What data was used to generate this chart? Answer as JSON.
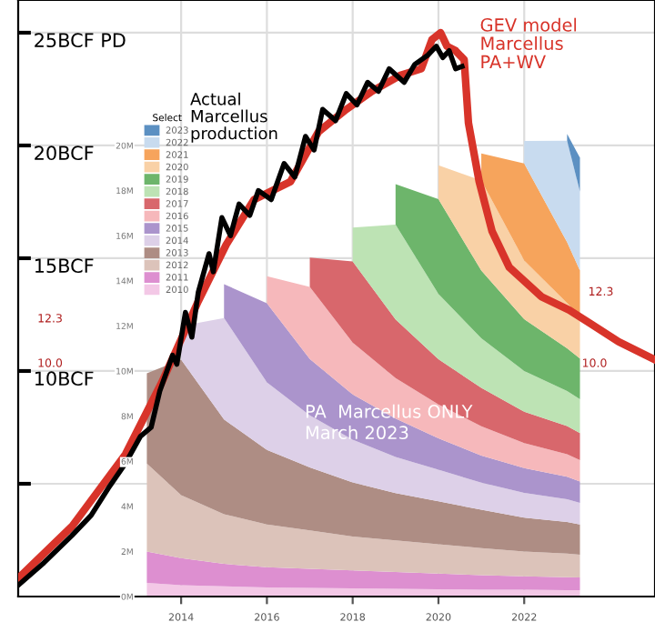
{
  "chart_data": {
    "type": "area",
    "stacked": true,
    "x": [
      2013.2,
      2014,
      2015,
      2016,
      2017,
      2018,
      2019,
      2020,
      2021,
      2022,
      2023,
      2023.3
    ],
    "xlim": [
      2010.2,
      2025.05
    ],
    "xticks": [
      2014,
      2016,
      2018,
      2020,
      2022
    ],
    "ylim": [
      0,
      26.45
    ],
    "yticks": [
      {
        "value": 5,
        "label": null
      },
      {
        "value": 10,
        "label": "10BCF"
      },
      {
        "value": 15,
        "label": "15BCF"
      },
      {
        "value": 20,
        "label": "20BCF"
      },
      {
        "value": 25,
        "label": "25BCF PD"
      }
    ],
    "y2lim": [
      0,
      26.45
    ],
    "y2ticks": [
      {
        "value": 0,
        "label": "0M"
      },
      {
        "value": 2,
        "label": "2M"
      },
      {
        "value": 4,
        "label": "4M"
      },
      {
        "value": 6,
        "label": "6M"
      },
      {
        "value": 8,
        "label": "8M"
      },
      {
        "value": 10,
        "label": "10M"
      },
      {
        "value": 12,
        "label": "12M"
      },
      {
        "value": 14,
        "label": "14M"
      },
      {
        "value": 16,
        "label": "16M"
      },
      {
        "value": 18,
        "label": "18M"
      },
      {
        "value": 20,
        "label": "20M"
      }
    ],
    "grid": true,
    "legend": "top left",
    "legend_title": "Select",
    "series": [
      {
        "name": "2010",
        "color": "#f3c8e6",
        "values": [
          0.6,
          0.5,
          0.45,
          0.4,
          0.38,
          0.36,
          0.34,
          0.32,
          0.3,
          0.3,
          0.28,
          0.28
        ]
      },
      {
        "name": "2011",
        "color": "#dd8fd0",
        "values": [
          1.4,
          1.2,
          1.0,
          0.9,
          0.85,
          0.8,
          0.75,
          0.7,
          0.65,
          0.6,
          0.58,
          0.57
        ]
      },
      {
        "name": "2012",
        "color": "#dcc3ba",
        "values": [
          3.9,
          2.8,
          2.2,
          1.9,
          1.7,
          1.5,
          1.4,
          1.3,
          1.2,
          1.1,
          1.05,
          1.0
        ]
      },
      {
        "name": "2013",
        "color": "#ae8d84",
        "values": [
          4.0,
          6.0,
          4.2,
          3.3,
          2.8,
          2.4,
          2.1,
          1.9,
          1.7,
          1.5,
          1.4,
          1.35
        ]
      },
      {
        "name": "2014",
        "color": "#ddd0e8",
        "values": [
          null,
          1.5,
          4.5,
          3.0,
          2.3,
          1.9,
          1.6,
          1.4,
          1.2,
          1.1,
          1.0,
          0.95
        ]
      },
      {
        "name": "2015",
        "color": "#ab94cc",
        "values": [
          null,
          null,
          1.5,
          3.5,
          2.5,
          2.0,
          1.7,
          1.4,
          1.2,
          1.1,
          1.0,
          0.95
        ]
      },
      {
        "name": "2016",
        "color": "#f6b8bb",
        "values": [
          null,
          null,
          null,
          1.2,
          3.2,
          2.3,
          1.8,
          1.5,
          1.3,
          1.1,
          1.0,
          0.95
        ]
      },
      {
        "name": "2017",
        "color": "#d8676c",
        "values": [
          null,
          null,
          null,
          null,
          1.3,
          3.6,
          2.6,
          2.0,
          1.7,
          1.4,
          1.25,
          1.2
        ]
      },
      {
        "name": "2018",
        "color": "#bde3b4",
        "values": [
          null,
          null,
          null,
          null,
          null,
          1.5,
          4.2,
          2.9,
          2.2,
          1.8,
          1.55,
          1.5
        ]
      },
      {
        "name": "2019",
        "color": "#6db56b",
        "values": [
          null,
          null,
          null,
          null,
          null,
          null,
          1.8,
          4.2,
          3.0,
          2.3,
          1.9,
          1.8
        ]
      },
      {
        "name": "2020",
        "color": "#f9d1a6",
        "values": [
          null,
          null,
          null,
          null,
          null,
          null,
          null,
          1.5,
          4.0,
          2.6,
          2.0,
          1.9
        ]
      },
      {
        "name": "2021",
        "color": "#f6a45c",
        "values": [
          null,
          null,
          null,
          null,
          null,
          null,
          null,
          null,
          1.2,
          4.3,
          2.7,
          2.0
        ]
      },
      {
        "name": "2022",
        "color": "#c8dbef",
        "values": [
          null,
          null,
          null,
          null,
          null,
          null,
          null,
          null,
          null,
          1.0,
          4.5,
          3.5
        ]
      },
      {
        "name": "2023",
        "color": "#5c90c2",
        "values": [
          null,
          null,
          null,
          null,
          null,
          null,
          null,
          null,
          null,
          null,
          0.3,
          1.5
        ]
      },
      {
        "type": "line",
        "name": "GEV model\nMarcellus\nPA+WV",
        "color": "#d8342a",
        "x": [
          2010.2,
          2011.45,
          2012.7,
          2013.55,
          2014.4,
          2015.05,
          2015.7,
          2016.55,
          2017.2,
          2017.85,
          2018.45,
          2019.1,
          2019.6,
          2019.85,
          2020.05,
          2020.2,
          2020.4,
          2020.6,
          2020.7,
          2020.95,
          2021.25,
          2021.65,
          2022.4,
          2023.05,
          2023.55,
          2024.2,
          2025.05
        ],
        "values": [
          0.8,
          3.1,
          6.3,
          9.5,
          13.1,
          15.6,
          17.6,
          18.4,
          20.6,
          21.6,
          22.4,
          23.1,
          23.4,
          24.7,
          25.0,
          24.4,
          24.2,
          23.8,
          21.0,
          18.4,
          16.2,
          14.6,
          13.3,
          12.7,
          12.1,
          11.3,
          10.5
        ]
      },
      {
        "type": "line",
        "name": "Actual\nMarcellus\nproduction",
        "color": "#000000",
        "x": [
          2010.2,
          2010.8,
          2011.45,
          2011.9,
          2012.3,
          2012.7,
          2013.05,
          2013.3,
          2013.5,
          2013.8,
          2013.9,
          2014.1,
          2014.25,
          2014.4,
          2014.65,
          2014.75,
          2014.95,
          2015.15,
          2015.35,
          2015.6,
          2015.8,
          2016.1,
          2016.4,
          2016.65,
          2016.9,
          2017.1,
          2017.3,
          2017.6,
          2017.85,
          2018.1,
          2018.35,
          2018.6,
          2018.85,
          2019.2,
          2019.45,
          2019.75,
          2019.95,
          2020.1,
          2020.25,
          2020.4,
          2020.55
        ],
        "values": [
          0.5,
          1.5,
          2.7,
          3.6,
          4.8,
          5.9,
          7.1,
          7.5,
          9.1,
          10.7,
          10.3,
          12.6,
          11.5,
          13.5,
          15.2,
          14.4,
          16.8,
          16.0,
          17.4,
          16.9,
          18.0,
          17.6,
          19.2,
          18.6,
          20.4,
          19.8,
          21.6,
          21.1,
          22.3,
          21.8,
          22.8,
          22.4,
          23.4,
          22.8,
          23.6,
          24.0,
          24.4,
          23.9,
          24.2,
          23.4,
          23.5
        ]
      }
    ],
    "annotations": [
      "PA  Marcellus ONLY\nMarch 2023",
      "12.3",
      "10.0",
      "12.3",
      "10.0"
    ]
  }
}
